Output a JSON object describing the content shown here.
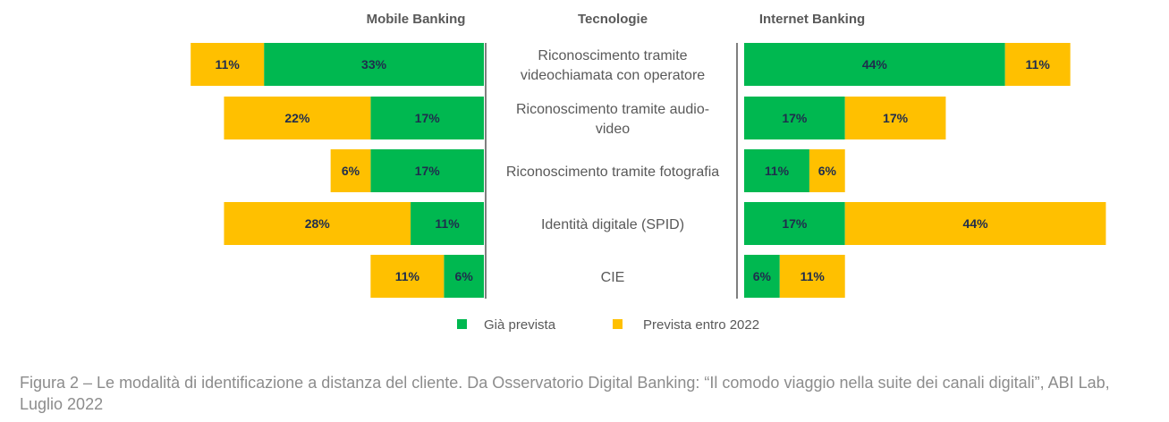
{
  "chart_data": {
    "type": "bar",
    "orientation": "horizontal-stacked-butterfly",
    "panel_headers": {
      "left": "Mobile Banking",
      "center": "Tecnologie",
      "right": "Internet Banking"
    },
    "categories": [
      "Riconoscimento tramite\nvideochiamata con operatore",
      "Riconoscimento tramite audio-\nvideo",
      "Riconoscimento tramite fotografia",
      "Identità digitale (SPID)",
      "CIE"
    ],
    "series": [
      {
        "name": "Già prevista",
        "color": "#00b850",
        "mobile_banking": [
          33,
          17,
          17,
          11,
          6
        ],
        "internet_banking": [
          44,
          17,
          11,
          17,
          6
        ]
      },
      {
        "name": "Prevista entro 2022",
        "color": "#ffc000",
        "mobile_banking": [
          11,
          22,
          6,
          28,
          11
        ],
        "internet_banking": [
          11,
          17,
          6,
          44,
          11
        ]
      }
    ],
    "unit": "%",
    "legend": "bottom-center",
    "grid": false
  },
  "caption": "Figura 2 – Le modalità di identificazione a distanza del cliente. Da Osservatorio Digital Banking: “Il comodo viaggio nella suite dei canali digitali”, ABI Lab, Luglio 2022"
}
